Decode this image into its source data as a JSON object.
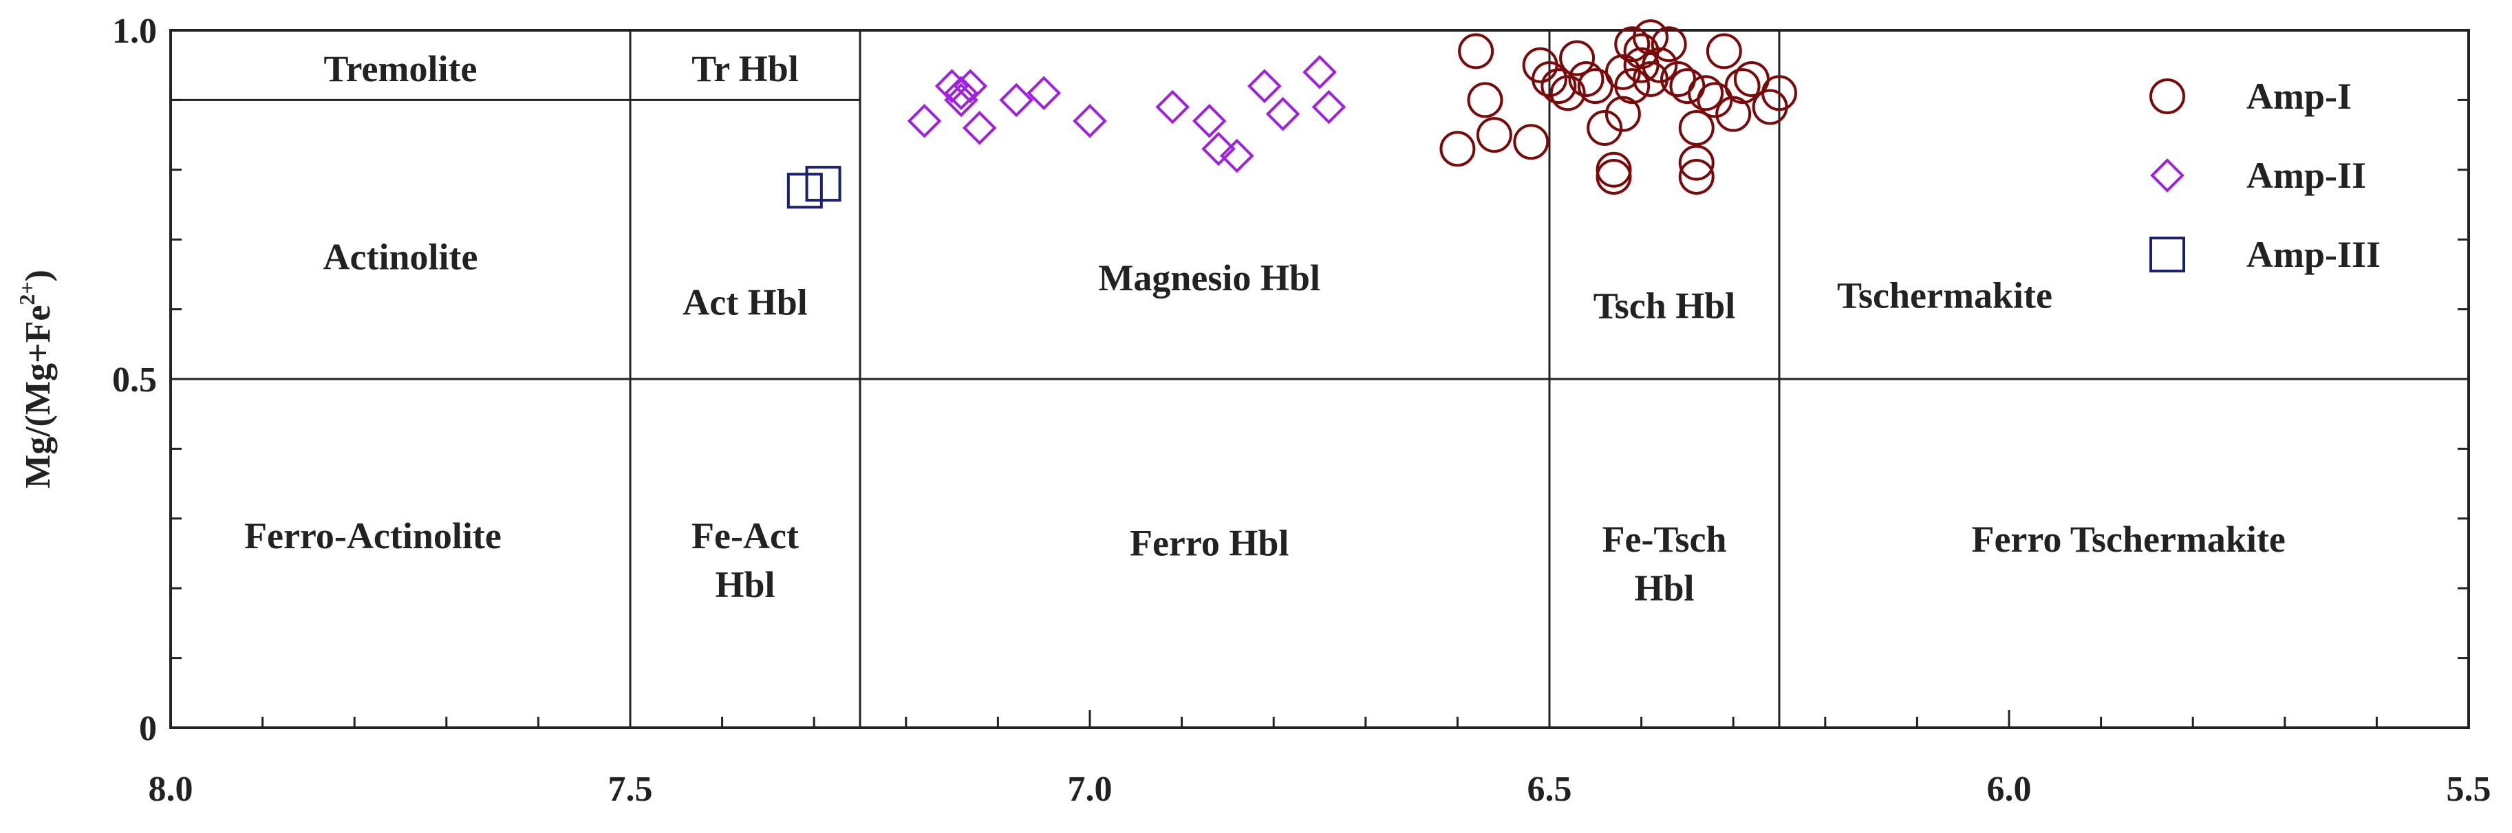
{
  "chart_data": {
    "type": "scatter",
    "title": "",
    "xlabel": "",
    "ylabel": "Mg/(Mg+Fe2+)",
    "ylabel_parts": {
      "main": "Mg/(Mg+Fe",
      "sup": "2+",
      "end": ")"
    },
    "xlim": [
      8.0,
      5.5
    ],
    "x_reversed": true,
    "ylim": [
      0,
      1.0
    ],
    "x_ticks": [
      "8.0",
      "7.5",
      "7.0",
      "6.5",
      "6.0",
      "5.5"
    ],
    "x_tick_values": [
      8.0,
      7.5,
      7.0,
      6.5,
      6.0,
      5.5
    ],
    "y_ticks": [
      "0",
      "0.5",
      "1.0"
    ],
    "y_tick_values": [
      0,
      0.5,
      1.0
    ],
    "grid": false,
    "legend_position": "top-right",
    "boundaries": {
      "vertical_x": [
        7.5,
        7.25,
        6.5,
        6.25
      ],
      "horizontal_full_y": 0.5,
      "horizontal_partial": {
        "y": 0.9,
        "x_from": 8.0,
        "x_to": 7.25
      }
    },
    "regions": [
      {
        "label": "Tremolite",
        "x": 7.75,
        "y": 0.945
      },
      {
        "label": "Tr Hbl",
        "x": 7.375,
        "y": 0.945
      },
      {
        "label": "Actinolite",
        "x": 7.75,
        "y": 0.675
      },
      {
        "label": "Act Hbl",
        "x": 7.375,
        "y": 0.61
      },
      {
        "label": "Magnesio Hbl",
        "x": 6.87,
        "y": 0.645
      },
      {
        "label": "Tsch Hbl",
        "x": 6.375,
        "y": 0.605
      },
      {
        "label": "Tschermakite",
        "x": 6.07,
        "y": 0.62
      },
      {
        "label": "Ferro-Actinolite",
        "x": 7.78,
        "y": 0.275
      },
      {
        "label": "Fe-Act",
        "x": 7.375,
        "y": 0.275
      },
      {
        "label": "Hbl",
        "x": 7.375,
        "y": 0.205
      },
      {
        "label": "Ferro Hbl",
        "x": 6.87,
        "y": 0.265
      },
      {
        "label": "Fe-Tsch",
        "x": 6.375,
        "y": 0.27
      },
      {
        "label": "Hbl",
        "x": 6.375,
        "y": 0.2
      },
      {
        "label": "Ferro Tschermakite",
        "x": 5.87,
        "y": 0.27
      }
    ],
    "series": [
      {
        "name": "Amp-I",
        "marker": "circle",
        "color": "#7a0a0a",
        "points": [
          [
            6.58,
            0.97
          ],
          [
            6.57,
            0.9
          ],
          [
            6.56,
            0.85
          ],
          [
            6.6,
            0.83
          ],
          [
            6.52,
            0.84
          ],
          [
            6.51,
            0.95
          ],
          [
            6.5,
            0.93
          ],
          [
            6.49,
            0.92
          ],
          [
            6.48,
            0.91
          ],
          [
            6.47,
            0.96
          ],
          [
            6.46,
            0.93
          ],
          [
            6.45,
            0.92
          ],
          [
            6.44,
            0.86
          ],
          [
            6.43,
            0.8
          ],
          [
            6.43,
            0.79
          ],
          [
            6.42,
            0.94
          ],
          [
            6.42,
            0.88
          ],
          [
            6.41,
            0.92
          ],
          [
            6.41,
            0.98
          ],
          [
            6.4,
            0.95
          ],
          [
            6.4,
            0.97
          ],
          [
            6.39,
            0.99
          ],
          [
            6.39,
            0.93
          ],
          [
            6.38,
            0.95
          ],
          [
            6.37,
            0.98
          ],
          [
            6.36,
            0.93
          ],
          [
            6.35,
            0.92
          ],
          [
            6.34,
            0.86
          ],
          [
            6.34,
            0.81
          ],
          [
            6.34,
            0.79
          ],
          [
            6.33,
            0.91
          ],
          [
            6.32,
            0.9
          ],
          [
            6.31,
            0.97
          ],
          [
            6.3,
            0.88
          ],
          [
            6.29,
            0.92
          ],
          [
            6.28,
            0.93
          ],
          [
            6.26,
            0.89
          ],
          [
            6.25,
            0.91
          ]
        ]
      },
      {
        "name": "Amp-II",
        "marker": "diamond",
        "color": "#a020e0",
        "points": [
          [
            7.18,
            0.87
          ],
          [
            7.15,
            0.92
          ],
          [
            7.14,
            0.91
          ],
          [
            7.14,
            0.9
          ],
          [
            7.13,
            0.92
          ],
          [
            7.12,
            0.86
          ],
          [
            7.08,
            0.9
          ],
          [
            7.05,
            0.91
          ],
          [
            7.0,
            0.87
          ],
          [
            6.91,
            0.89
          ],
          [
            6.87,
            0.87
          ],
          [
            6.86,
            0.83
          ],
          [
            6.84,
            0.82
          ],
          [
            6.81,
            0.92
          ],
          [
            6.79,
            0.88
          ],
          [
            6.75,
            0.94
          ],
          [
            6.74,
            0.89
          ]
        ]
      },
      {
        "name": "Amp-III",
        "marker": "square",
        "color": "#1a2070",
        "points": [
          [
            7.31,
            0.77
          ],
          [
            7.29,
            0.78
          ]
        ]
      }
    ]
  }
}
